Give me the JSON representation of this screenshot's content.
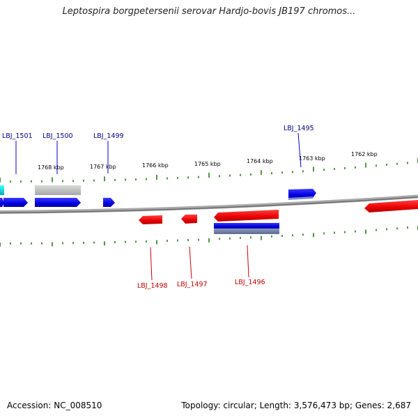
{
  "title": "Leptospira borgpetersenii serovar Hardjo-bovis JB197 chromos...",
  "accession": "Accession: NC_008510",
  "summary": "Topology: circular; Length: 3,576,473 bp; Genes: 2,687",
  "colors": {
    "backbone": "#808080",
    "forward_gene": "#0000ee",
    "reverse_gene": "#ee0000",
    "forward_label": "#000080",
    "reverse_label": "#c00000",
    "ticks": "#2a7a1a",
    "gray_feature": "#b8b8b8",
    "cyan_feature": "#00d0d0"
  },
  "tick_labels": [
    "1768 kbp",
    "1767 kbp",
    "1766 kbp",
    "1765 kbp",
    "1764 kbp",
    "1763 kbp",
    "1762 kbp"
  ],
  "gene_labels_forward": [
    "LBJ_1501",
    "LBJ_1500",
    "LBJ_1499",
    "LBJ_1495"
  ],
  "gene_labels_reverse": [
    "LBJ_1498",
    "LBJ_1497",
    "LBJ_1496"
  ]
}
